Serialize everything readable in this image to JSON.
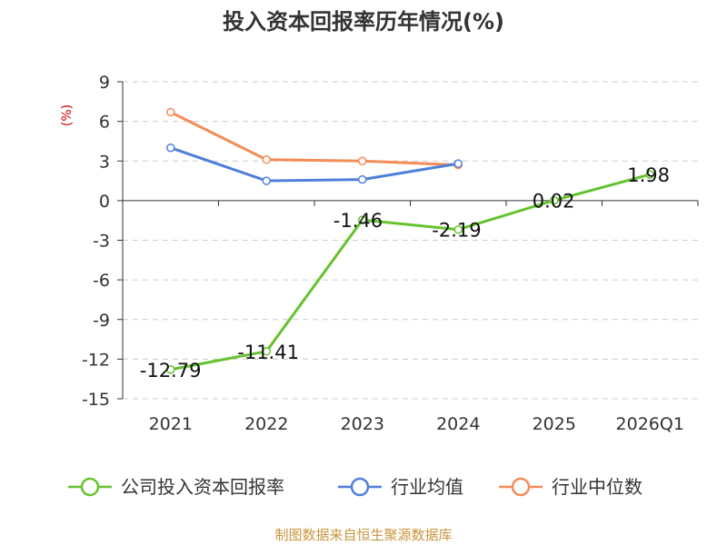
{
  "chart_data": {
    "type": "line",
    "title": "投入资本回报率历年情况(%)",
    "ylabel": "(%)",
    "categories": [
      "2021",
      "2022",
      "2023",
      "2024",
      "2025",
      "2026Q1"
    ],
    "ylim": [
      -15,
      9
    ],
    "yticks": [
      9,
      6,
      3,
      0,
      -3,
      -6,
      -9,
      -12,
      -15
    ],
    "grid": true,
    "legend_position": "bottom",
    "series": [
      {
        "name": "公司投入资本回报率",
        "color": "#66c32e",
        "values": [
          -12.79,
          -11.41,
          -1.46,
          -2.19,
          0.02,
          1.98
        ],
        "labels": [
          "-12.79",
          "-11.41",
          "-1.46",
          "-2.19",
          "0.02",
          "1.98"
        ]
      },
      {
        "name": "行业均值",
        "color": "#4f7fd9",
        "values": [
          4.0,
          1.5,
          1.6,
          2.8,
          null,
          null
        ]
      },
      {
        "name": "行业中位数",
        "color": "#f48c57",
        "values": [
          6.7,
          3.1,
          3.0,
          2.7,
          null,
          null
        ]
      }
    ]
  },
  "source": "制图数据来自恒生聚源数据库"
}
